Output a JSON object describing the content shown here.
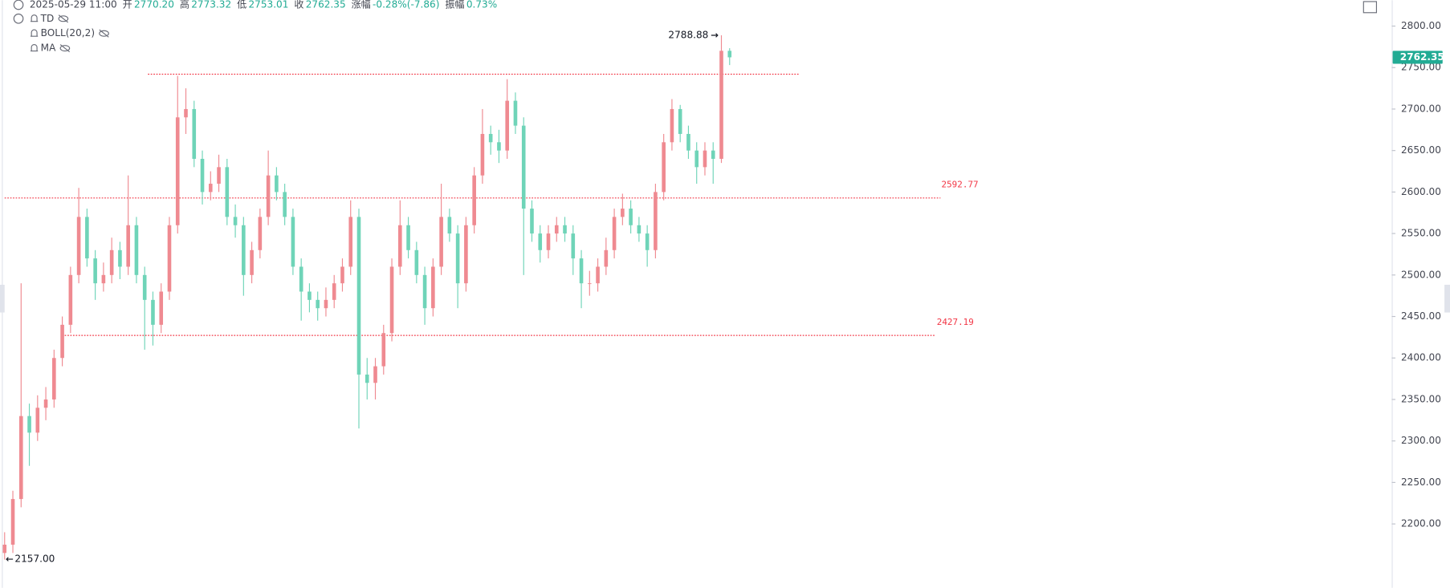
{
  "header": {
    "datetime": "2025-05-29 11:00",
    "fields": [
      {
        "label": "开",
        "value": "2770.20"
      },
      {
        "label": "高",
        "value": "2773.32"
      },
      {
        "label": "低",
        "value": "2753.01"
      },
      {
        "label": "收",
        "value": "2762.35"
      },
      {
        "label": "涨幅",
        "value": "-0.28%(-7.86)"
      },
      {
        "label": "振幅",
        "value": "0.73%"
      }
    ],
    "indicators": [
      "TD",
      "BOLL(20,2)",
      "MA"
    ]
  },
  "chart_data": {
    "type": "candlestick",
    "up_color": "#ef8a91",
    "down_color": "#6fd4b8",
    "line_color": "#f23645",
    "last_color": "#22ab94",
    "ylim": [
      2123,
      2831.2
    ],
    "yticks": [
      {
        "value": 2200,
        "label": "2200.00"
      },
      {
        "value": 2250,
        "label": "2250.00"
      },
      {
        "value": 2300,
        "label": "2300.00"
      },
      {
        "value": 2350,
        "label": "2350.00"
      },
      {
        "value": 2400,
        "label": "2400.00"
      },
      {
        "value": 2450,
        "label": "2450.00"
      },
      {
        "value": 2500,
        "label": "2500.00"
      },
      {
        "value": 2550,
        "label": "2550.00"
      },
      {
        "value": 2600,
        "label": "2600.00"
      },
      {
        "value": 2650,
        "label": "2650.00"
      },
      {
        "value": 2700,
        "label": "2700.00"
      },
      {
        "value": 2750,
        "label": "2750.00"
      },
      {
        "value": 2800,
        "label": "2800.00"
      }
    ],
    "ohlc": [
      [
        2165,
        2190,
        2157,
        2175
      ],
      [
        2175,
        2240,
        2165,
        2230
      ],
      [
        2230,
        2490,
        2220,
        2330
      ],
      [
        2330,
        2345,
        2270,
        2310
      ],
      [
        2310,
        2355,
        2300,
        2340
      ],
      [
        2340,
        2365,
        2325,
        2350
      ],
      [
        2350,
        2410,
        2340,
        2400
      ],
      [
        2400,
        2450,
        2390,
        2440
      ],
      [
        2440,
        2510,
        2430,
        2500
      ],
      [
        2500,
        2605,
        2490,
        2570
      ],
      [
        2570,
        2580,
        2510,
        2520
      ],
      [
        2520,
        2530,
        2470,
        2490
      ],
      [
        2490,
        2515,
        2480,
        2500
      ],
      [
        2500,
        2545,
        2490,
        2530
      ],
      [
        2530,
        2540,
        2495,
        2510
      ],
      [
        2510,
        2620,
        2500,
        2560
      ],
      [
        2560,
        2570,
        2490,
        2500
      ],
      [
        2500,
        2510,
        2410,
        2470
      ],
      [
        2470,
        2480,
        2415,
        2440
      ],
      [
        2440,
        2490,
        2430,
        2480
      ],
      [
        2480,
        2570,
        2470,
        2560
      ],
      [
        2560,
        2740,
        2550,
        2690
      ],
      [
        2690,
        2725,
        2670,
        2700
      ],
      [
        2700,
        2710,
        2630,
        2640
      ],
      [
        2640,
        2650,
        2585,
        2600
      ],
      [
        2600,
        2625,
        2590,
        2610
      ],
      [
        2610,
        2645,
        2600,
        2630
      ],
      [
        2630,
        2640,
        2560,
        2570
      ],
      [
        2570,
        2585,
        2545,
        2560
      ],
      [
        2560,
        2570,
        2475,
        2500
      ],
      [
        2500,
        2540,
        2490,
        2530
      ],
      [
        2530,
        2580,
        2520,
        2570
      ],
      [
        2570,
        2650,
        2560,
        2620
      ],
      [
        2620,
        2630,
        2590,
        2600
      ],
      [
        2600,
        2610,
        2560,
        2570
      ],
      [
        2570,
        2580,
        2500,
        2510
      ],
      [
        2510,
        2520,
        2445,
        2480
      ],
      [
        2480,
        2490,
        2455,
        2470
      ],
      [
        2470,
        2480,
        2445,
        2460
      ],
      [
        2460,
        2485,
        2450,
        2470
      ],
      [
        2470,
        2500,
        2460,
        2490
      ],
      [
        2490,
        2520,
        2480,
        2510
      ],
      [
        2510,
        2590,
        2500,
        2570
      ],
      [
        2570,
        2580,
        2315,
        2380
      ],
      [
        2380,
        2400,
        2350,
        2370
      ],
      [
        2370,
        2400,
        2350,
        2390
      ],
      [
        2390,
        2440,
        2380,
        2430
      ],
      [
        2430,
        2520,
        2420,
        2510
      ],
      [
        2510,
        2590,
        2500,
        2560
      ],
      [
        2560,
        2570,
        2520,
        2530
      ],
      [
        2530,
        2540,
        2490,
        2500
      ],
      [
        2500,
        2510,
        2440,
        2460
      ],
      [
        2460,
        2520,
        2450,
        2510
      ],
      [
        2510,
        2610,
        2500,
        2570
      ],
      [
        2570,
        2580,
        2540,
        2550
      ],
      [
        2550,
        2560,
        2460,
        2490
      ],
      [
        2490,
        2570,
        2480,
        2560
      ],
      [
        2560,
        2630,
        2550,
        2620
      ],
      [
        2620,
        2700,
        2610,
        2670
      ],
      [
        2670,
        2680,
        2645,
        2660
      ],
      [
        2660,
        2675,
        2635,
        2650
      ],
      [
        2650,
        2736,
        2640,
        2710
      ],
      [
        2710,
        2720,
        2670,
        2680
      ],
      [
        2680,
        2690,
        2500,
        2580
      ],
      [
        2580,
        2590,
        2540,
        2550
      ],
      [
        2550,
        2560,
        2515,
        2530
      ],
      [
        2530,
        2560,
        2520,
        2550
      ],
      [
        2550,
        2570,
        2540,
        2560
      ],
      [
        2560,
        2570,
        2540,
        2550
      ],
      [
        2550,
        2560,
        2500,
        2520
      ],
      [
        2520,
        2530,
        2460,
        2490
      ],
      [
        2490,
        2505,
        2475,
        2490
      ],
      [
        2490,
        2520,
        2480,
        2510
      ],
      [
        2510,
        2545,
        2500,
        2530
      ],
      [
        2530,
        2580,
        2520,
        2570
      ],
      [
        2570,
        2598,
        2560,
        2580
      ],
      [
        2580,
        2590,
        2550,
        2560
      ],
      [
        2560,
        2570,
        2540,
        2550
      ],
      [
        2550,
        2560,
        2510,
        2530
      ],
      [
        2530,
        2610,
        2520,
        2600
      ],
      [
        2600,
        2670,
        2590,
        2660
      ],
      [
        2660,
        2712,
        2650,
        2700
      ],
      [
        2700,
        2705,
        2660,
        2670
      ],
      [
        2670,
        2680,
        2640,
        2650
      ],
      [
        2650,
        2660,
        2610,
        2630
      ],
      [
        2630,
        2660,
        2620,
        2650
      ],
      [
        2650,
        2660,
        2610,
        2640
      ],
      [
        2640,
        2788.88,
        2635,
        2770.2
      ],
      [
        2770.2,
        2773.32,
        2753.01,
        2762.35
      ]
    ],
    "hlines": [
      {
        "value": 2742
      },
      {
        "value": 2592.77,
        "label": "2592.77"
      },
      {
        "value": 2427.19,
        "label": "2427.19"
      }
    ],
    "max_label": "2788.88",
    "max_value": 2788.88,
    "min_label": "2157.00",
    "min_value": 2157,
    "last_value": 2762.35
  }
}
